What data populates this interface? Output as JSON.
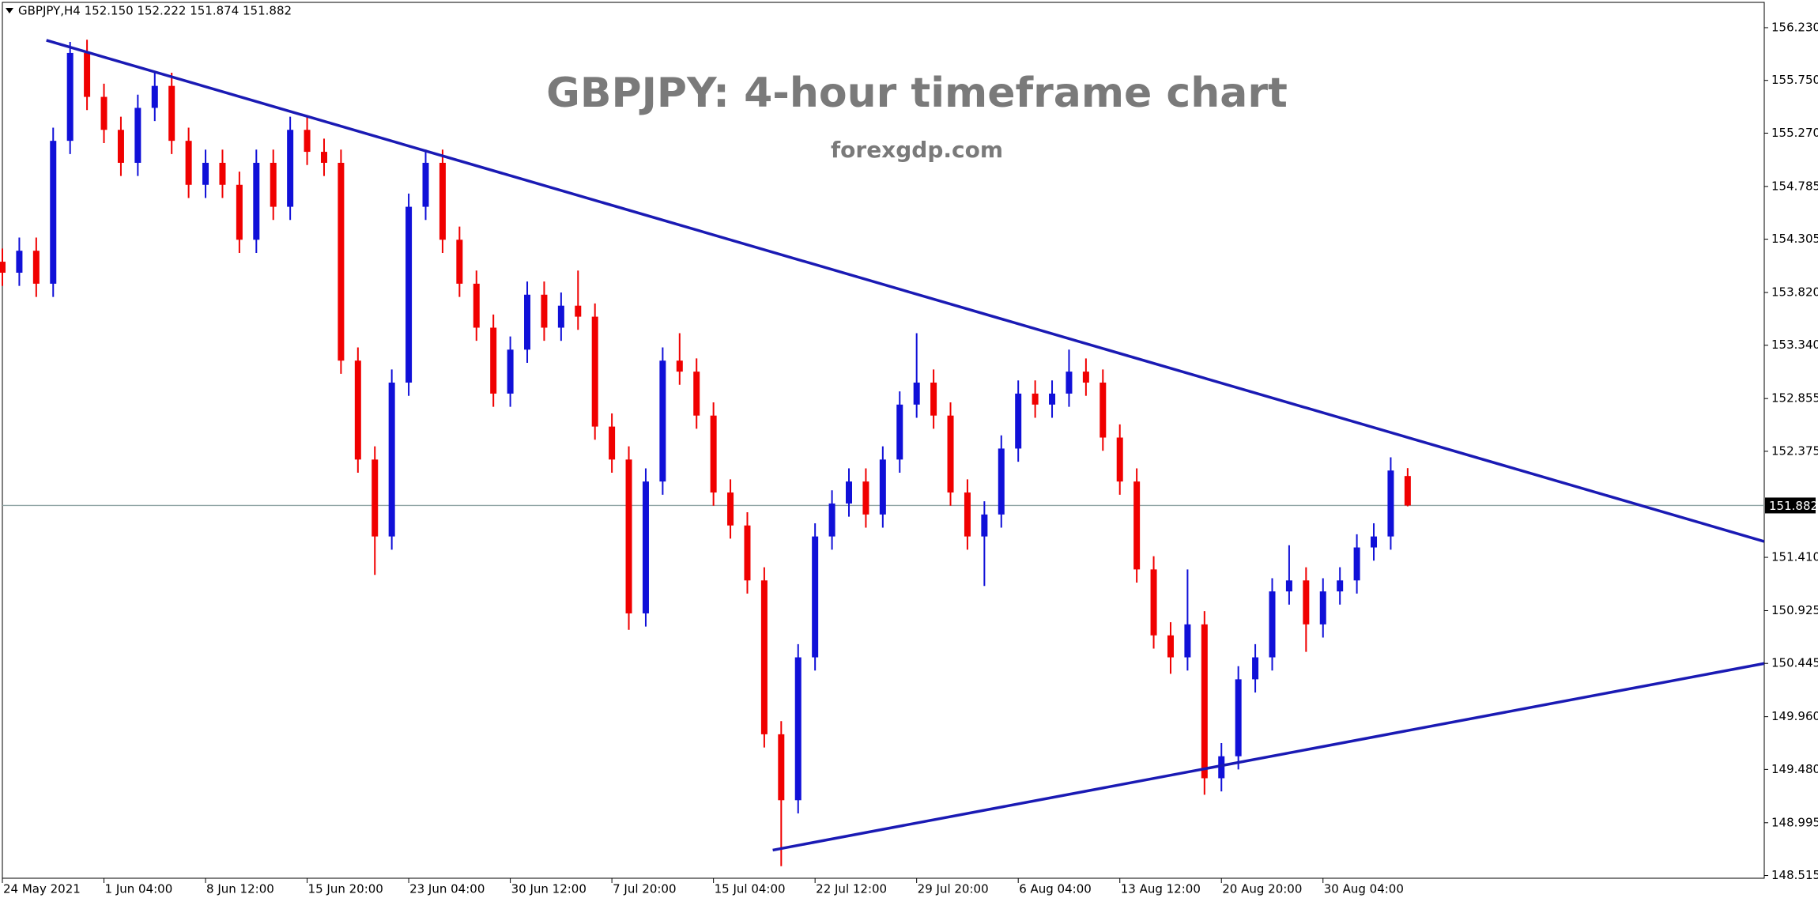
{
  "chart_data": {
    "type": "candlestick",
    "header": "GBPJPY,H4  152.150 152.222 151.874 151.882",
    "title": "GBPJPY: 4-hour timeframe chart",
    "subtitle": "forexgdp.com",
    "categories": [
      "24 May 2021",
      null,
      null,
      null,
      null,
      null,
      "1 Jun 04:00",
      null,
      null,
      null,
      null,
      null,
      "8 Jun 12:00",
      null,
      null,
      null,
      null,
      null,
      "15 Jun 20:00",
      null,
      null,
      null,
      null,
      null,
      "23 Jun 04:00",
      null,
      null,
      null,
      null,
      null,
      "30 Jun 12:00",
      null,
      null,
      null,
      null,
      null,
      "7 Jul 20:00",
      null,
      null,
      null,
      null,
      null,
      "15 Jul 04:00",
      null,
      null,
      null,
      null,
      null,
      "22 Jul 12:00",
      null,
      null,
      null,
      null,
      null,
      "29 Jul 20:00",
      null,
      null,
      null,
      null,
      null,
      "6 Aug 04:00",
      null,
      null,
      null,
      null,
      null,
      "13 Aug 12:00",
      null,
      null,
      null,
      null,
      null,
      "20 Aug 20:00",
      null,
      null,
      null,
      null,
      null,
      "30 Aug 04:00",
      null,
      null,
      null,
      null,
      null
    ],
    "open": [
      154.1,
      154.0,
      154.2,
      153.9,
      155.2,
      156.0,
      155.6,
      155.3,
      155.0,
      155.5,
      155.7,
      155.2,
      154.8,
      155.0,
      154.8,
      154.3,
      155.0,
      154.6,
      155.3,
      155.1,
      155.0,
      153.2,
      152.3,
      151.6,
      153.0,
      154.6,
      155.0,
      154.3,
      153.9,
      153.5,
      152.9,
      153.3,
      153.8,
      153.5,
      153.7,
      153.6,
      152.6,
      152.3,
      150.9,
      152.1,
      153.2,
      153.1,
      152.7,
      152.0,
      151.7,
      151.2,
      149.8,
      149.2,
      150.5,
      151.6,
      151.9,
      152.1,
      151.8,
      152.3,
      152.8,
      153.0,
      152.7,
      152.0,
      151.6,
      151.8,
      152.4,
      152.9,
      152.8,
      152.9,
      153.1,
      153.0,
      152.5,
      152.1,
      151.3,
      150.7,
      150.5,
      150.8,
      149.4,
      149.6,
      150.3,
      150.5,
      151.1,
      151.2,
      150.8,
      151.1,
      151.2,
      151.5,
      151.6,
      152.15
    ],
    "high": [
      154.22,
      154.32,
      154.32,
      155.32,
      156.1,
      156.12,
      155.72,
      155.42,
      155.62,
      155.82,
      155.82,
      155.32,
      155.12,
      155.12,
      154.92,
      155.12,
      155.12,
      155.42,
      155.42,
      155.22,
      155.12,
      153.32,
      152.42,
      153.12,
      154.72,
      155.12,
      155.12,
      154.42,
      154.02,
      153.62,
      153.42,
      153.92,
      153.92,
      153.82,
      154.02,
      153.72,
      152.72,
      152.42,
      152.22,
      153.32,
      153.45,
      153.22,
      152.82,
      152.12,
      151.82,
      151.32,
      149.92,
      150.62,
      151.72,
      152.02,
      152.22,
      152.22,
      152.42,
      152.92,
      153.45,
      153.12,
      152.82,
      152.12,
      151.92,
      152.52,
      153.02,
      153.02,
      153.02,
      153.3,
      153.22,
      153.12,
      152.62,
      152.22,
      151.42,
      150.82,
      151.3,
      150.92,
      149.72,
      150.42,
      150.62,
      151.22,
      151.52,
      151.32,
      151.22,
      151.32,
      151.62,
      151.72,
      152.32,
      152.222
    ],
    "low": [
      153.88,
      153.88,
      153.78,
      153.78,
      155.08,
      155.48,
      155.18,
      154.88,
      154.88,
      155.38,
      155.08,
      154.68,
      154.68,
      154.68,
      154.18,
      154.18,
      154.48,
      154.48,
      154.98,
      154.88,
      153.08,
      152.18,
      151.25,
      151.48,
      152.88,
      154.48,
      154.18,
      153.78,
      153.38,
      152.78,
      152.78,
      153.18,
      153.38,
      153.38,
      153.48,
      152.48,
      152.18,
      150.75,
      150.78,
      151.98,
      152.98,
      152.58,
      151.88,
      151.58,
      151.08,
      149.68,
      148.6,
      149.08,
      150.38,
      151.48,
      151.78,
      151.68,
      151.68,
      152.18,
      152.68,
      152.58,
      151.88,
      151.48,
      151.15,
      151.68,
      152.28,
      152.68,
      152.68,
      152.78,
      152.88,
      152.38,
      151.98,
      151.18,
      150.58,
      150.35,
      150.38,
      149.25,
      149.28,
      149.48,
      150.18,
      150.38,
      150.98,
      150.55,
      150.68,
      150.98,
      151.08,
      151.38,
      151.48,
      151.874
    ],
    "close": [
      154.0,
      154.2,
      153.9,
      155.2,
      156.0,
      155.6,
      155.3,
      155.0,
      155.5,
      155.7,
      155.2,
      154.8,
      155.0,
      154.8,
      154.3,
      155.0,
      154.6,
      155.3,
      155.1,
      155.0,
      153.2,
      152.3,
      151.6,
      153.0,
      154.6,
      155.0,
      154.3,
      153.9,
      153.5,
      152.9,
      153.3,
      153.8,
      153.5,
      153.7,
      153.6,
      152.6,
      152.3,
      150.9,
      152.1,
      153.2,
      153.1,
      152.7,
      152.0,
      151.7,
      151.2,
      149.8,
      149.2,
      150.5,
      151.6,
      151.9,
      152.1,
      151.8,
      152.3,
      152.8,
      153.0,
      152.7,
      152.0,
      151.6,
      151.8,
      152.4,
      152.9,
      152.8,
      152.9,
      153.1,
      153.0,
      152.5,
      152.1,
      151.3,
      150.7,
      150.5,
      150.8,
      149.4,
      149.6,
      150.3,
      150.5,
      151.1,
      151.2,
      150.8,
      151.1,
      151.2,
      151.5,
      151.6,
      152.2,
      151.882
    ],
    "up_color": "#1010d8",
    "down_color": "#f00000",
    "trendline_color": "#1a1ab4",
    "trendlines": [
      {
        "x": [
          2.6,
          104.05
        ],
        "y": [
          156.115,
          151.555
        ]
      },
      {
        "x": [
          45.5,
          104.05
        ],
        "y": [
          148.746,
          150.444
        ]
      }
    ],
    "current_price": 151.882,
    "current_price_label": "151.882",
    "ylim": [
      148.49,
      156.46
    ],
    "yticks": [
      {
        "value": 156.23,
        "label": "156.230"
      },
      {
        "value": 155.75,
        "label": "155.750"
      },
      {
        "value": 155.27,
        "label": "155.270"
      },
      154.785,
      154.305,
      {
        "value": 153.82,
        "label": "153.820"
      },
      {
        "value": 153.34,
        "label": "153.340"
      },
      152.855,
      152.375,
      {
        "value": 151.41,
        "label": "151.410"
      },
      150.925,
      150.445,
      {
        "value": 149.96,
        "label": "149.960"
      },
      {
        "value": 149.48,
        "label": "149.480"
      },
      148.995,
      148.515
    ]
  }
}
